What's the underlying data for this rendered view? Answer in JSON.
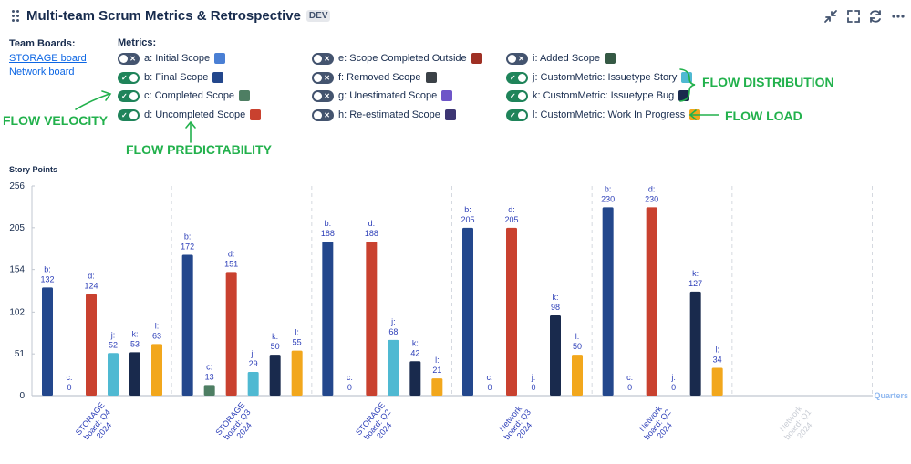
{
  "header": {
    "title": "Multi-team Scrum Metrics & Retrospective",
    "env_badge": "DEV",
    "icons": [
      "minimize-icon",
      "fullscreen-icon",
      "refresh-icon",
      "more-icon"
    ]
  },
  "boards": {
    "label": "Team Boards:",
    "items": [
      "STORAGE board",
      "Network board"
    ]
  },
  "metrics": {
    "label": "Metrics:",
    "items": [
      {
        "label": "a: Initial Scope",
        "on": false,
        "color": "#4a7fd4"
      },
      {
        "label": "b: Final Scope",
        "on": true,
        "color": "#23478c"
      },
      {
        "label": "c: Completed Scope",
        "on": true,
        "color": "#4e7e63"
      },
      {
        "label": "d: Uncompleted Scope",
        "on": true,
        "color": "#c9412f"
      },
      {
        "label": "e: Scope Completed Outside",
        "on": false,
        "color": "#9f3024"
      },
      {
        "label": "f: Removed Scope",
        "on": false,
        "color": "#3b4147"
      },
      {
        "label": "g: Unestimated Scope",
        "on": false,
        "color": "#6e55c8"
      },
      {
        "label": "h: Re-estimated Scope",
        "on": false,
        "color": "#3d3673"
      },
      {
        "label": "i: Added Scope",
        "on": false,
        "color": "#355944"
      },
      {
        "label": "j: CustomMetric: Issuetype Story",
        "on": true,
        "color": "#4fb9d2"
      },
      {
        "label": "k: CustomMetric: Issuetype Bug",
        "on": true,
        "color": "#192a4d"
      },
      {
        "label": "l: CustomMetric: Work In Progress",
        "on": true,
        "color": "#f2a71c"
      }
    ]
  },
  "annotations": {
    "flow_velocity": "FLOW VELOCITY",
    "flow_predictability": "FLOW PREDICTABILITY",
    "flow_distribution": "FLOW DISTRIBUTION",
    "flow_load": "FLOW LOAD",
    "color": "#22b14c"
  },
  "chart_data": {
    "type": "bar",
    "ylabel": "Story Points",
    "xlabel": "Quarters",
    "ylim": [
      0,
      256
    ],
    "yticks": [
      0,
      51,
      102,
      154,
      205,
      256
    ],
    "categories": [
      "STORAGE board: Q4 2024",
      "STORAGE board: Q3 2024",
      "STORAGE board: Q2 2024",
      "Network board: Q3 2024",
      "Network board: Q2 2024",
      "Network board: Q1 2024"
    ],
    "category_colors": [
      "#2c3eb8",
      "#2c3eb8",
      "#2c3eb8",
      "#2c3eb8",
      "#2c3eb8",
      "#c8ccd4"
    ],
    "series": [
      {
        "key": "b",
        "name": "b: Final Scope",
        "color": "#23478c",
        "values": [
          132,
          172,
          188,
          205,
          230,
          null
        ]
      },
      {
        "key": "c",
        "name": "c: Completed Scope",
        "color": "#4e7e63",
        "values": [
          0,
          13,
          0,
          0,
          0,
          null
        ]
      },
      {
        "key": "d",
        "name": "d: Uncompleted Scope",
        "color": "#c9412f",
        "values": [
          124,
          151,
          188,
          205,
          230,
          null
        ]
      },
      {
        "key": "j",
        "name": "j: CustomMetric: Issuetype Story",
        "color": "#4fb9d2",
        "values": [
          52,
          29,
          68,
          0,
          0,
          null
        ]
      },
      {
        "key": "k",
        "name": "k: CustomMetric: Issuetype Bug",
        "color": "#192a4d",
        "values": [
          53,
          50,
          42,
          98,
          127,
          null
        ]
      },
      {
        "key": "l",
        "name": "l: CustomMetric: Work In Progress",
        "color": "#f2a71c",
        "values": [
          63,
          55,
          21,
          50,
          34,
          null
        ]
      }
    ],
    "label_color": "#2c3eb8",
    "grid": true
  }
}
